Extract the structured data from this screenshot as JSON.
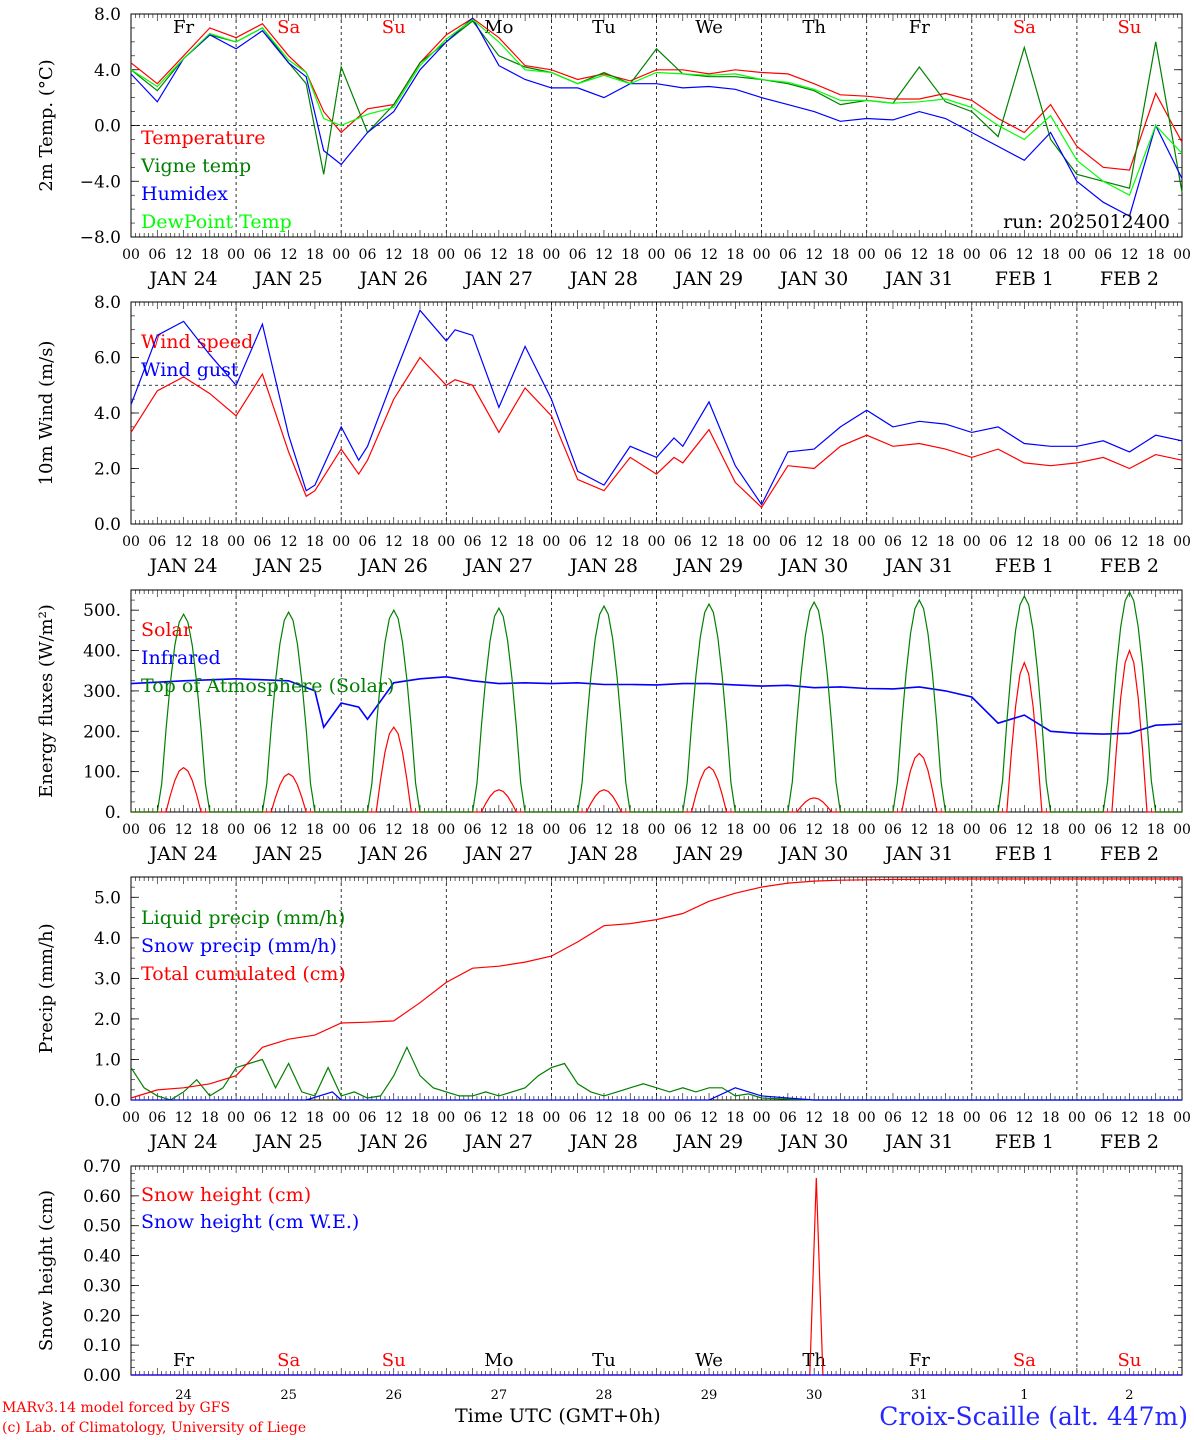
{
  "run_label": "run: 2025012400",
  "footer": {
    "model": "MARv3.14 model forced by GFS",
    "lab": "(c) Lab. of Climatology, University of Liege",
    "time_label": "Time UTC (GMT+0h)",
    "station": "Croix-Scaille (alt. 447m)"
  },
  "hour_ticks": [
    "00",
    "06",
    "12",
    "18"
  ],
  "end_tick": "00",
  "dates": [
    "JAN 24",
    "JAN 25",
    "JAN 26",
    "JAN 27",
    "JAN 28",
    "JAN 29",
    "JAN 30",
    "JAN 31",
    "FEB  1",
    "FEB  2"
  ],
  "weekdays": [
    {
      "label": "Fr",
      "color": "#000000"
    },
    {
      "label": "Sa",
      "color": "#ff0000"
    },
    {
      "label": "Su",
      "color": "#ff0000"
    },
    {
      "label": "Mo",
      "color": "#000000"
    },
    {
      "label": "Tu",
      "color": "#000000"
    },
    {
      "label": "We",
      "color": "#000000"
    },
    {
      "label": "Th",
      "color": "#000000"
    },
    {
      "label": "Fr",
      "color": "#000000"
    },
    {
      "label": "Sa",
      "color": "#ff0000"
    },
    {
      "label": "Su",
      "color": "#ff0000"
    }
  ],
  "day_numbers": [
    "24",
    "25",
    "26",
    "27",
    "28",
    "29",
    "30",
    "31",
    "1",
    "2"
  ],
  "chart_data": [
    {
      "type": "line",
      "ylabel": "2m Temp. (°C)",
      "ylim": [
        -8,
        8
      ],
      "yticks": [
        -8,
        -4,
        0,
        4,
        8
      ],
      "ytick_labels": [
        "−8.0",
        "−4.0",
        "0.0",
        "4.0",
        "8.0"
      ],
      "ref_line": 0,
      "x_unit": "hours since JAN 24 00 UTC",
      "show_weekdays": true,
      "series": [
        {
          "name": "Temperature",
          "color": "#ff0000",
          "x": [
            0,
            6,
            12,
            18,
            24,
            30,
            36,
            40,
            44,
            48,
            54,
            60,
            66,
            72,
            78,
            84,
            90,
            96,
            102,
            108,
            114,
            120,
            126,
            132,
            138,
            144,
            150,
            156,
            162,
            168,
            174,
            180,
            186,
            192,
            198,
            204,
            210,
            216,
            222,
            228,
            234,
            240
          ],
          "values": [
            4.5,
            3.0,
            5.0,
            7.0,
            6.3,
            7.3,
            5.0,
            3.8,
            1.0,
            -0.5,
            1.2,
            1.5,
            4.5,
            6.5,
            7.7,
            6.3,
            4.3,
            4.0,
            3.3,
            3.7,
            3.2,
            4.0,
            4.0,
            3.7,
            4.0,
            3.8,
            3.7,
            3.0,
            2.2,
            2.1,
            1.9,
            1.9,
            2.3,
            1.8,
            0.5,
            -0.5,
            1.5,
            -1.5,
            -3.0,
            -3.2,
            2.3,
            -1.2
          ]
        },
        {
          "name": "Vigne temp",
          "color": "#008000",
          "x": [
            0,
            6,
            12,
            18,
            24,
            30,
            36,
            40,
            44,
            48,
            54,
            60,
            66,
            72,
            78,
            84,
            90,
            96,
            102,
            108,
            114,
            120,
            126,
            132,
            138,
            144,
            150,
            156,
            162,
            168,
            174,
            180,
            186,
            192,
            198,
            204,
            210,
            216,
            222,
            228,
            234,
            240
          ],
          "values": [
            4.0,
            2.5,
            4.8,
            6.5,
            6.0,
            7.0,
            4.5,
            3.0,
            -3.5,
            4.2,
            -0.5,
            1.5,
            4.5,
            6.0,
            7.5,
            5.0,
            4.2,
            3.8,
            3.0,
            3.8,
            3.0,
            5.5,
            3.7,
            3.5,
            3.5,
            3.3,
            3.0,
            2.5,
            1.5,
            1.8,
            1.6,
            4.2,
            1.7,
            1.0,
            -0.8,
            5.6,
            -1.0,
            -3.5,
            -4.0,
            -4.5,
            6.0,
            -4.8
          ]
        },
        {
          "name": "Humidex",
          "color": "#0000ff",
          "x": [
            0,
            6,
            12,
            18,
            24,
            30,
            36,
            40,
            44,
            48,
            54,
            60,
            66,
            72,
            78,
            84,
            90,
            96,
            102,
            108,
            114,
            120,
            126,
            132,
            138,
            144,
            150,
            156,
            162,
            168,
            174,
            180,
            186,
            192,
            198,
            204,
            210,
            216,
            222,
            228,
            234,
            240
          ],
          "values": [
            3.7,
            1.7,
            4.8,
            6.5,
            5.5,
            6.8,
            4.5,
            3.5,
            -1.8,
            -2.8,
            -0.5,
            1.0,
            4.0,
            6.0,
            7.7,
            4.3,
            3.3,
            2.7,
            2.7,
            2.0,
            3.0,
            3.0,
            2.7,
            2.8,
            2.6,
            2.0,
            1.5,
            1.0,
            0.3,
            0.5,
            0.4,
            1.0,
            0.5,
            -0.5,
            -1.5,
            -2.5,
            -0.5,
            -4.0,
            -5.5,
            -6.5,
            0.0,
            -3.8
          ]
        },
        {
          "name": "DewPoint Temp",
          "color": "#00ff00",
          "x": [
            0,
            6,
            12,
            18,
            24,
            30,
            36,
            40,
            44,
            48,
            54,
            60,
            66,
            72,
            78,
            84,
            90,
            96,
            102,
            108,
            114,
            120,
            126,
            132,
            138,
            144,
            150,
            156,
            162,
            168,
            174,
            180,
            186,
            192,
            198,
            204,
            210,
            216,
            222,
            228,
            234,
            240
          ],
          "values": [
            4.0,
            2.8,
            4.8,
            6.6,
            6.0,
            7.0,
            4.7,
            3.8,
            0.5,
            0.0,
            0.8,
            1.3,
            4.3,
            6.2,
            7.6,
            6.0,
            4.0,
            3.8,
            3.0,
            3.6,
            3.0,
            3.8,
            3.7,
            3.6,
            3.7,
            3.3,
            3.1,
            2.6,
            1.8,
            1.8,
            1.6,
            1.7,
            1.9,
            1.3,
            0.0,
            -1.0,
            0.7,
            -2.5,
            -4.0,
            -5.0,
            0.0,
            -2.0
          ]
        }
      ]
    },
    {
      "type": "line",
      "ylabel": "10m Wind (m/s)",
      "ylim": [
        0,
        8
      ],
      "yticks": [
        0,
        2,
        4,
        6,
        8
      ],
      "ytick_labels": [
        "0.0",
        "2.0",
        "4.0",
        "6.0",
        "8.0"
      ],
      "ref_line": 5,
      "x_unit": "hours since JAN 24 00 UTC",
      "show_weekdays": false,
      "series": [
        {
          "name": "Wind speed",
          "color": "#ff0000",
          "x": [
            0,
            6,
            12,
            18,
            24,
            30,
            36,
            40,
            42,
            48,
            52,
            54,
            60,
            66,
            72,
            74,
            78,
            84,
            90,
            96,
            102,
            108,
            114,
            120,
            124,
            126,
            132,
            138,
            144,
            150,
            156,
            162,
            168,
            174,
            180,
            186,
            192,
            198,
            204,
            210,
            216,
            222,
            228,
            234,
            240
          ],
          "values": [
            3.3,
            4.8,
            5.3,
            4.7,
            3.9,
            5.4,
            2.6,
            1.0,
            1.2,
            2.7,
            1.8,
            2.3,
            4.5,
            6.0,
            5.0,
            5.2,
            5.0,
            3.3,
            4.9,
            3.9,
            1.6,
            1.2,
            2.4,
            1.8,
            2.4,
            2.2,
            3.4,
            1.5,
            0.6,
            2.1,
            2.0,
            2.8,
            3.2,
            2.8,
            2.9,
            2.7,
            2.4,
            2.7,
            2.2,
            2.1,
            2.2,
            2.4,
            2.0,
            2.5,
            2.3
          ]
        },
        {
          "name": "Wind gust",
          "color": "#0000ff",
          "x": [
            0,
            6,
            12,
            18,
            24,
            30,
            36,
            40,
            42,
            48,
            52,
            54,
            60,
            66,
            72,
            74,
            78,
            84,
            90,
            96,
            102,
            108,
            114,
            120,
            124,
            126,
            132,
            138,
            144,
            150,
            156,
            162,
            168,
            174,
            180,
            186,
            192,
            198,
            204,
            210,
            216,
            222,
            228,
            234,
            240
          ],
          "values": [
            4.3,
            6.8,
            7.3,
            6.1,
            5.0,
            7.2,
            3.2,
            1.2,
            1.4,
            3.5,
            2.3,
            2.8,
            5.3,
            7.7,
            6.6,
            7.0,
            6.8,
            4.2,
            6.4,
            4.5,
            1.9,
            1.4,
            2.8,
            2.4,
            3.1,
            2.8,
            4.4,
            2.1,
            0.7,
            2.6,
            2.7,
            3.5,
            4.1,
            3.5,
            3.7,
            3.6,
            3.3,
            3.5,
            2.9,
            2.8,
            2.8,
            3.0,
            2.6,
            3.2,
            3.0
          ]
        }
      ]
    },
    {
      "type": "line",
      "ylabel": "Energy fluxes (W/m²)",
      "ylim": [
        0,
        550
      ],
      "yticks": [
        0,
        100,
        200,
        300,
        400,
        500
      ],
      "ytick_labels": [
        "0.",
        "100.",
        "200.",
        "300.",
        "400.",
        "500."
      ],
      "x_unit": "hours since JAN 24 00 UTC",
      "show_weekdays": false,
      "series": [
        {
          "name": "Solar",
          "color": "#ff0000",
          "peaks": [
            110,
            95,
            210,
            55,
            55,
            112,
            35,
            145,
            370,
            400
          ]
        },
        {
          "name": "Infrared",
          "color": "#0000ff",
          "x": [
            0,
            12,
            24,
            36,
            42,
            44,
            48,
            52,
            54,
            60,
            66,
            72,
            78,
            84,
            90,
            96,
            102,
            108,
            114,
            120,
            126,
            132,
            138,
            144,
            150,
            156,
            162,
            168,
            174,
            180,
            186,
            192,
            198,
            204,
            210,
            216,
            222,
            228,
            234,
            240
          ],
          "values": [
            318,
            325,
            330,
            325,
            300,
            210,
            270,
            260,
            230,
            320,
            330,
            335,
            325,
            318,
            320,
            318,
            320,
            316,
            316,
            315,
            318,
            318,
            315,
            312,
            314,
            308,
            310,
            306,
            305,
            310,
            300,
            285,
            220,
            240,
            200,
            195,
            193,
            195,
            215,
            218
          ]
        },
        {
          "name": "Top of Atmosphere (Solar)",
          "color": "#008000",
          "peaks": [
            490,
            495,
            500,
            505,
            510,
            515,
            520,
            525,
            535,
            545
          ]
        }
      ]
    },
    {
      "type": "line",
      "ylabel": "Precip (mm/h)",
      "ylim": [
        0,
        5.5
      ],
      "yticks": [
        0,
        1,
        2,
        3,
        4,
        5
      ],
      "ytick_labels": [
        "0.0",
        "1.0",
        "2.0",
        "3.0",
        "4.0",
        "5.0"
      ],
      "x_unit": "hours since JAN 24 00 UTC",
      "show_weekdays": false,
      "series": [
        {
          "name": "Liquid precip (mm/h)",
          "color": "#008000",
          "x": [
            0,
            3,
            6,
            9,
            12,
            15,
            18,
            21,
            24,
            27,
            30,
            33,
            36,
            39,
            42,
            45,
            48,
            51,
            54,
            57,
            60,
            63,
            66,
            69,
            72,
            75,
            78,
            81,
            84,
            87,
            90,
            93,
            96,
            99,
            102,
            105,
            108,
            111,
            114,
            117,
            120,
            123,
            126,
            129,
            132,
            135,
            138,
            141,
            144,
            150,
            156,
            240
          ],
          "values": [
            0.8,
            0.3,
            0.1,
            0.0,
            0.2,
            0.5,
            0.1,
            0.3,
            0.8,
            0.9,
            1.0,
            0.3,
            0.9,
            0.2,
            0.1,
            0.8,
            0.1,
            0.2,
            0.05,
            0.1,
            0.6,
            1.3,
            0.6,
            0.3,
            0.2,
            0.1,
            0.1,
            0.2,
            0.1,
            0.2,
            0.3,
            0.6,
            0.8,
            0.9,
            0.4,
            0.2,
            0.1,
            0.2,
            0.3,
            0.4,
            0.3,
            0.2,
            0.3,
            0.2,
            0.3,
            0.3,
            0.1,
            0.15,
            0.05,
            0.02,
            0.0,
            0.0
          ]
        },
        {
          "name": "Snow precip (mm/h)",
          "color": "#0000ff",
          "x": [
            0,
            40,
            46,
            48,
            52,
            132,
            138,
            144,
            150,
            156,
            240
          ],
          "values": [
            0,
            0,
            0.2,
            0,
            0,
            0,
            0.3,
            0.1,
            0.05,
            0,
            0
          ]
        },
        {
          "name": "Total cumulated (cm)",
          "color": "#ff0000",
          "x": [
            0,
            6,
            12,
            18,
            24,
            30,
            36,
            42,
            48,
            54,
            60,
            66,
            72,
            78,
            84,
            90,
            96,
            102,
            108,
            114,
            120,
            126,
            132,
            138,
            144,
            150,
            156,
            162,
            168,
            174,
            180,
            186,
            192,
            198,
            204,
            240
          ],
          "values": [
            0.05,
            0.25,
            0.3,
            0.4,
            0.6,
            1.3,
            1.5,
            1.6,
            1.9,
            1.92,
            1.95,
            2.4,
            2.9,
            3.25,
            3.3,
            3.4,
            3.55,
            3.9,
            4.3,
            4.35,
            4.45,
            4.6,
            4.9,
            5.1,
            5.25,
            5.35,
            5.4,
            5.42,
            5.43,
            5.44,
            5.44,
            5.45,
            5.45,
            5.45,
            5.45,
            5.45
          ]
        }
      ]
    },
    {
      "type": "line",
      "ylabel": "Snow height (cm)",
      "ylim": [
        0,
        0.7
      ],
      "yticks": [
        0,
        0.1,
        0.2,
        0.3,
        0.4,
        0.5,
        0.6,
        0.7
      ],
      "ytick_labels": [
        "0.00",
        "0.10",
        "0.20",
        "0.30",
        "0.40",
        "0.50",
        "0.60",
        "0.70"
      ],
      "x_unit": "hours since JAN 24 00 UTC",
      "show_weekdays": true,
      "series": [
        {
          "name": "Snow height (cm)",
          "color": "#ff0000",
          "x": [
            0,
            155,
            156.5,
            158,
            240
          ],
          "values": [
            0,
            0,
            0.66,
            0,
            0
          ]
        },
        {
          "name": "Snow height (cm W.E.)",
          "color": "#0000ff",
          "x": [
            0,
            240
          ],
          "values": [
            0,
            0
          ]
        }
      ]
    }
  ]
}
